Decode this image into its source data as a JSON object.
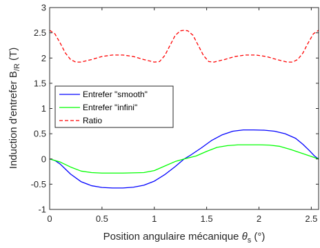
{
  "chart_data": {
    "type": "line",
    "xlabel": {
      "main": "Position angulaire mécanique ",
      "symbol": "θ",
      "sub": "s",
      "unit": " (°)"
    },
    "ylabel": {
      "main": "Induction d'entrefer B",
      "sub": "/R",
      "unit": " (T)"
    },
    "xlim": [
      0,
      2.57
    ],
    "ylim": [
      -1,
      3
    ],
    "xticks": [
      0,
      0.5,
      1,
      1.5,
      2,
      2.5
    ],
    "xtick_labels": [
      "0",
      "0.5",
      "1",
      "1.5",
      "2",
      "2.5"
    ],
    "yticks": [
      -1,
      -0.5,
      0,
      0.5,
      1,
      1.5,
      2,
      2.5,
      3
    ],
    "ytick_labels": [
      "-1",
      "-0.5",
      "0",
      "0.5",
      "1",
      "1.5",
      "2",
      "2.5",
      "3"
    ],
    "grid": false,
    "legend_position": "middle-left",
    "series": [
      {
        "name": "Entrefer \"smooth\"",
        "color": "#0000ff",
        "dash": "solid",
        "points": [
          [
            0,
            0
          ],
          [
            0.05,
            -0.03
          ],
          [
            0.1,
            -0.1
          ],
          [
            0.15,
            -0.2
          ],
          [
            0.2,
            -0.3
          ],
          [
            0.3,
            -0.45
          ],
          [
            0.4,
            -0.53
          ],
          [
            0.5,
            -0.565
          ],
          [
            0.6,
            -0.575
          ],
          [
            0.7,
            -0.575
          ],
          [
            0.8,
            -0.56
          ],
          [
            0.9,
            -0.52
          ],
          [
            1.0,
            -0.44
          ],
          [
            1.1,
            -0.31
          ],
          [
            1.2,
            -0.15
          ],
          [
            1.285,
            0
          ],
          [
            1.35,
            0.08
          ],
          [
            1.45,
            0.22
          ],
          [
            1.55,
            0.37
          ],
          [
            1.65,
            0.48
          ],
          [
            1.75,
            0.55
          ],
          [
            1.85,
            0.575
          ],
          [
            1.95,
            0.575
          ],
          [
            2.05,
            0.57
          ],
          [
            2.15,
            0.55
          ],
          [
            2.25,
            0.5
          ],
          [
            2.35,
            0.41
          ],
          [
            2.42,
            0.29
          ],
          [
            2.48,
            0.17
          ],
          [
            2.53,
            0.06
          ],
          [
            2.57,
            0
          ]
        ]
      },
      {
        "name": "Entrefer \"infini\"",
        "color": "#00ff00",
        "dash": "solid",
        "points": [
          [
            0,
            0
          ],
          [
            0.1,
            -0.06
          ],
          [
            0.2,
            -0.16
          ],
          [
            0.3,
            -0.24
          ],
          [
            0.4,
            -0.27
          ],
          [
            0.5,
            -0.28
          ],
          [
            0.7,
            -0.28
          ],
          [
            0.9,
            -0.27
          ],
          [
            1.0,
            -0.23
          ],
          [
            1.1,
            -0.14
          ],
          [
            1.2,
            -0.05
          ],
          [
            1.285,
            0
          ],
          [
            1.4,
            0.06
          ],
          [
            1.5,
            0.15
          ],
          [
            1.6,
            0.23
          ],
          [
            1.7,
            0.265
          ],
          [
            1.8,
            0.28
          ],
          [
            2.0,
            0.28
          ],
          [
            2.1,
            0.275
          ],
          [
            2.2,
            0.25
          ],
          [
            2.3,
            0.19
          ],
          [
            2.4,
            0.12
          ],
          [
            2.5,
            0.05
          ],
          [
            2.57,
            0
          ]
        ]
      },
      {
        "name": "Ratio",
        "color": "#ff0000",
        "dash": "dashed",
        "points": [
          [
            0,
            2.55
          ],
          [
            0.05,
            2.48
          ],
          [
            0.1,
            2.3
          ],
          [
            0.15,
            2.1
          ],
          [
            0.2,
            1.97
          ],
          [
            0.25,
            1.92
          ],
          [
            0.3,
            1.92
          ],
          [
            0.4,
            1.97
          ],
          [
            0.5,
            2.03
          ],
          [
            0.6,
            2.06
          ],
          [
            0.7,
            2.06
          ],
          [
            0.8,
            2.03
          ],
          [
            0.9,
            1.97
          ],
          [
            1.0,
            1.92
          ],
          [
            1.05,
            1.93
          ],
          [
            1.1,
            2.05
          ],
          [
            1.15,
            2.25
          ],
          [
            1.2,
            2.45
          ],
          [
            1.25,
            2.54
          ],
          [
            1.285,
            2.55
          ],
          [
            1.32,
            2.54
          ],
          [
            1.37,
            2.45
          ],
          [
            1.42,
            2.25
          ],
          [
            1.47,
            2.05
          ],
          [
            1.52,
            1.93
          ],
          [
            1.57,
            1.92
          ],
          [
            1.67,
            1.97
          ],
          [
            1.77,
            2.03
          ],
          [
            1.87,
            2.06
          ],
          [
            1.97,
            2.06
          ],
          [
            2.07,
            2.03
          ],
          [
            2.17,
            1.97
          ],
          [
            2.27,
            1.92
          ],
          [
            2.32,
            1.92
          ],
          [
            2.37,
            1.97
          ],
          [
            2.42,
            2.1
          ],
          [
            2.47,
            2.3
          ],
          [
            2.52,
            2.48
          ],
          [
            2.57,
            2.55
          ]
        ]
      }
    ]
  }
}
